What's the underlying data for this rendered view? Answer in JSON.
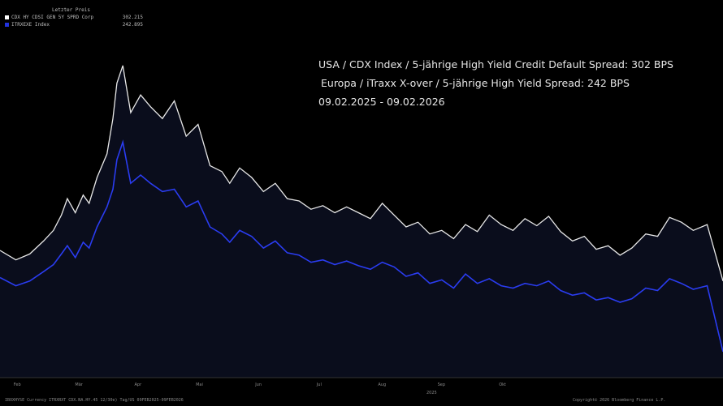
{
  "legend": {
    "header": "Letzter Preis",
    "items": [
      {
        "name": "CDX HY CDSI GEN 5Y SPRD Corp",
        "value": "302.215",
        "color": "#ffffff"
      },
      {
        "name": "ITRXEXE Index",
        "value": "242.895",
        "color": "#2233dd"
      }
    ]
  },
  "annotation": {
    "line1": "USA / CDX Index / 5-jährige High Yield Credit Default Spread: 302 BPS",
    "line2": "Europa / iTraxx X-over / 5-jährige High Yield Spread: 242 BPS",
    "line3": "09.02.2025 - 09.02.2026"
  },
  "footer": {
    "left": "IBOXHYSE Currency ITRXRXT CDX.NA.HY.45 12/30e) Tag/US 09FEB2025-09FEB2026",
    "right": "Copyright© 2026 Bloomberg Finance L.P."
  },
  "colors": {
    "background": "#000000",
    "us_line": "#e8e8e8",
    "eu_line": "#2a3cf0",
    "fill": "#0a0d1c"
  },
  "chart_data": {
    "type": "line",
    "title": "",
    "x_labels": [
      "Feb",
      "Mär",
      "Apr",
      "Mai",
      "Jun",
      "Jul",
      "Aug",
      "Sep",
      "Okt"
    ],
    "x_year_label": "2025",
    "x_range": [
      "2025-02-09",
      "2026-02-09"
    ],
    "y_range": [
      220,
      520
    ],
    "series": [
      {
        "name": "CDX HY CDSI GEN 5Y SPRD Corp",
        "color": "#e8e8e8",
        "x": [
          "2025-02-09",
          "2025-02-17",
          "2025-02-24",
          "2025-03-03",
          "2025-03-08",
          "2025-03-12",
          "2025-03-15",
          "2025-03-19",
          "2025-03-23",
          "2025-03-26",
          "2025-03-30",
          "2025-04-04",
          "2025-04-07",
          "2025-04-09",
          "2025-04-12",
          "2025-04-16",
          "2025-04-21",
          "2025-04-26",
          "2025-05-02",
          "2025-05-08",
          "2025-05-14",
          "2025-05-20",
          "2025-05-26",
          "2025-06-01",
          "2025-06-05",
          "2025-06-10",
          "2025-06-16",
          "2025-06-22",
          "2025-06-28",
          "2025-07-04",
          "2025-07-10",
          "2025-07-16",
          "2025-07-22",
          "2025-07-28",
          "2025-08-03",
          "2025-08-09",
          "2025-08-15",
          "2025-08-21",
          "2025-08-27",
          "2025-09-02",
          "2025-09-08",
          "2025-09-14",
          "2025-09-20",
          "2025-09-26",
          "2025-10-02",
          "2025-10-08",
          "2025-10-14",
          "2025-10-20",
          "2025-10-26",
          "2025-11-01",
          "2025-11-07",
          "2025-11-13",
          "2025-11-19",
          "2025-11-25",
          "2025-12-01",
          "2025-12-07",
          "2025-12-13",
          "2025-12-19",
          "2025-12-25",
          "2026-01-01",
          "2026-01-07",
          "2026-01-13",
          "2026-01-19",
          "2026-01-25",
          "2026-02-01",
          "2026-02-09"
        ],
        "values": [
          328,
          320,
          325,
          336,
          345,
          358,
          372,
          360,
          375,
          368,
          390,
          410,
          440,
          470,
          485,
          445,
          460,
          450,
          440,
          455,
          425,
          435,
          400,
          395,
          385,
          398,
          390,
          378,
          385,
          372,
          370,
          363,
          366,
          360,
          365,
          360,
          355,
          368,
          358,
          348,
          352,
          342,
          345,
          338,
          350,
          344,
          358,
          350,
          345,
          355,
          349,
          357,
          344,
          336,
          340,
          329,
          332,
          324,
          330,
          342,
          340,
          356,
          352,
          345,
          350,
          302
        ]
      },
      {
        "name": "ITRXEXE Index",
        "color": "#2a3cf0",
        "x": [
          "2025-02-09",
          "2025-02-17",
          "2025-02-24",
          "2025-03-03",
          "2025-03-08",
          "2025-03-12",
          "2025-03-15",
          "2025-03-19",
          "2025-03-23",
          "2025-03-26",
          "2025-03-30",
          "2025-04-04",
          "2025-04-07",
          "2025-04-09",
          "2025-04-12",
          "2025-04-16",
          "2025-04-21",
          "2025-04-26",
          "2025-05-02",
          "2025-05-08",
          "2025-05-14",
          "2025-05-20",
          "2025-05-26",
          "2025-06-01",
          "2025-06-05",
          "2025-06-10",
          "2025-06-16",
          "2025-06-22",
          "2025-06-28",
          "2025-07-04",
          "2025-07-10",
          "2025-07-16",
          "2025-07-22",
          "2025-07-28",
          "2025-08-03",
          "2025-08-09",
          "2025-08-15",
          "2025-08-21",
          "2025-08-27",
          "2025-09-02",
          "2025-09-08",
          "2025-09-14",
          "2025-09-20",
          "2025-09-26",
          "2025-10-02",
          "2025-10-08",
          "2025-10-14",
          "2025-10-20",
          "2025-10-26",
          "2025-11-01",
          "2025-11-07",
          "2025-11-13",
          "2025-11-19",
          "2025-11-25",
          "2025-12-01",
          "2025-12-07",
          "2025-12-13",
          "2025-12-19",
          "2025-12-25",
          "2026-01-01",
          "2026-01-07",
          "2026-01-13",
          "2026-01-19",
          "2026-01-25",
          "2026-02-01",
          "2026-02-09"
        ],
        "values": [
          305,
          298,
          302,
          310,
          316,
          325,
          332,
          322,
          335,
          330,
          348,
          365,
          380,
          405,
          420,
          385,
          392,
          385,
          378,
          380,
          365,
          370,
          348,
          342,
          335,
          345,
          340,
          330,
          336,
          326,
          324,
          318,
          320,
          316,
          319,
          315,
          312,
          318,
          314,
          306,
          309,
          300,
          303,
          296,
          308,
          300,
          304,
          298,
          296,
          300,
          298,
          302,
          294,
          290,
          292,
          286,
          288,
          284,
          287,
          296,
          294,
          304,
          300,
          295,
          298,
          242
        ]
      }
    ]
  }
}
